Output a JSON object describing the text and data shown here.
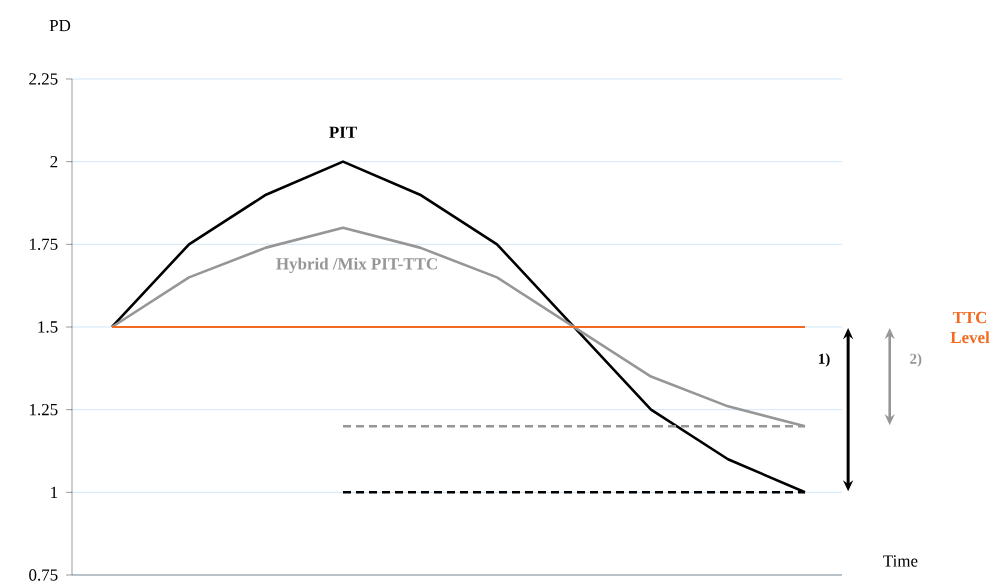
{
  "chart_data": {
    "type": "line",
    "xlabel": "Time",
    "ylabel": "PD",
    "categories": [
      null,
      null,
      null,
      null,
      null,
      null,
      null,
      null,
      null,
      null
    ],
    "ylim": [
      0.75,
      2.25
    ],
    "yticks": [
      0.75,
      1,
      1.25,
      1.5,
      1.75,
      2,
      2.25
    ],
    "grid": "y",
    "series": [
      {
        "name": "PIT",
        "color": "#000000",
        "values": [
          1.5,
          1.75,
          1.9,
          2.0,
          1.9,
          1.75,
          1.5,
          1.25,
          1.1,
          1.0
        ]
      },
      {
        "name": "Hybrid /Mix PIT-TTC",
        "color": "#969696",
        "values": [
          1.5,
          1.65,
          1.74,
          1.8,
          1.74,
          1.65,
          1.5,
          1.35,
          1.26,
          1.2
        ]
      },
      {
        "name": "TTC Level",
        "color": "#f26b21",
        "values": [
          1.5,
          1.5,
          1.5,
          1.5,
          1.5,
          1.5,
          1.5,
          1.5,
          1.5,
          1.5
        ]
      },
      {
        "color": "#000000",
        "line_style": "dashed",
        "values": [
          null,
          null,
          null,
          1.0,
          1.0,
          1.0,
          1.0,
          1.0,
          1.0,
          1.0
        ]
      },
      {
        "color": "#969696",
        "line_style": "dashed",
        "values": [
          null,
          null,
          null,
          1.2,
          1.2,
          1.2,
          1.2,
          1.2,
          1.2,
          1.2
        ]
      }
    ],
    "annotations": [
      "1)",
      "2)"
    ]
  }
}
